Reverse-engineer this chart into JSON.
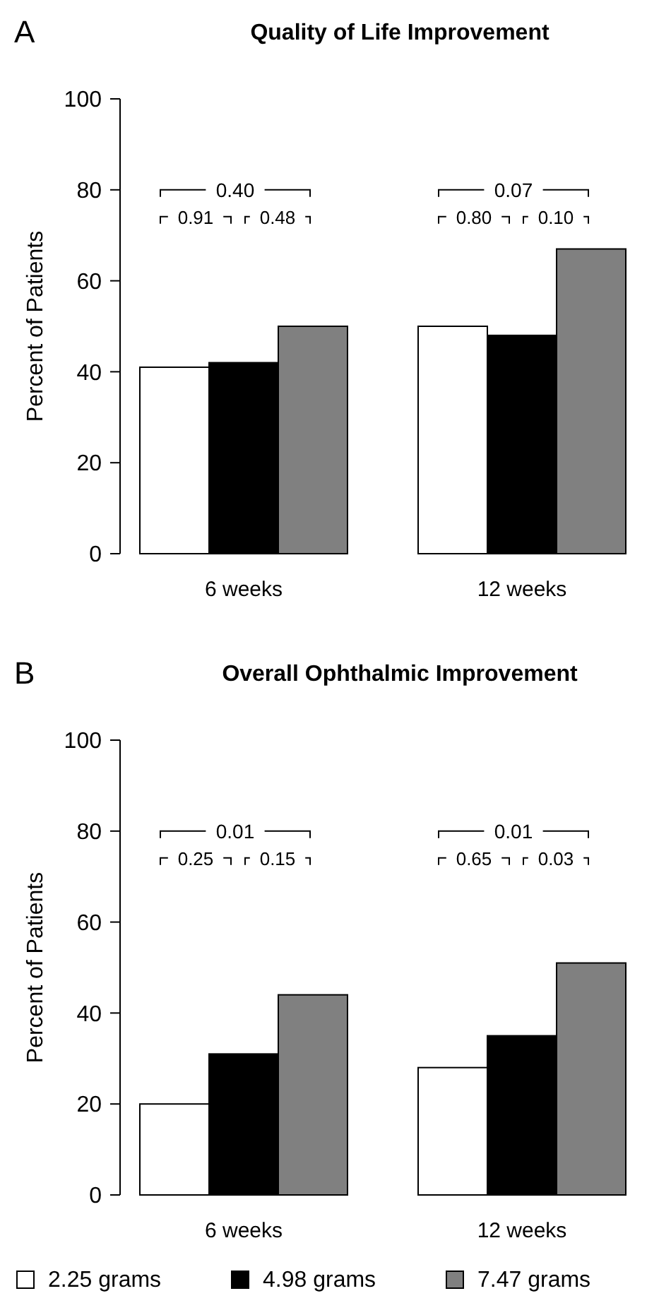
{
  "chart_data": [
    {
      "type": "bar",
      "title": "Quality of Life Improvement",
      "ylabel": "Percent of Patients",
      "categories": [
        "6 weeks",
        "12 weeks"
      ],
      "series": [
        {
          "color": "#ffffff",
          "values": [
            41,
            50
          ]
        },
        {
          "color": "#000000",
          "values": [
            42,
            48
          ]
        },
        {
          "color": "#808080",
          "values": [
            50,
            67
          ]
        }
      ],
      "ylim": [
        0,
        100
      ],
      "yticks": [
        0,
        20,
        40,
        60,
        80,
        100
      ],
      "legend": false,
      "annotations": [
        "A",
        "0.40",
        "0.91",
        "0.48",
        "0.07",
        "0.80",
        "0.10"
      ]
    },
    {
      "type": "bar",
      "title": "Overall Ophthalmic Improvement",
      "ylabel": "Percent of Patients",
      "categories": [
        "6 weeks",
        "12 weeks"
      ],
      "series": [
        {
          "name": "2.25 grams",
          "color": "#ffffff",
          "values": [
            20,
            28
          ]
        },
        {
          "name": "4.98 grams",
          "color": "#000000",
          "values": [
            31,
            35
          ]
        },
        {
          "name": "7.47 grams",
          "color": "#808080",
          "values": [
            44,
            51
          ]
        }
      ],
      "ylim": [
        0,
        100
      ],
      "yticks": [
        0,
        20,
        40,
        60,
        80,
        100
      ],
      "legend": "bottom",
      "annotations": [
        "B",
        "0.01",
        "0.25",
        "0.15",
        "0.01",
        "0.65",
        "0.03"
      ]
    }
  ]
}
